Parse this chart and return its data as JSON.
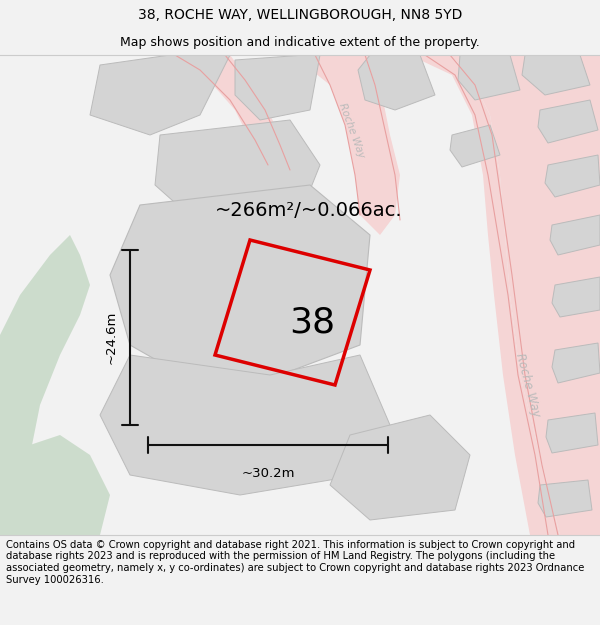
{
  "title_line1": "38, ROCHE WAY, WELLINGBOROUGH, NN8 5YD",
  "title_line2": "Map shows position and indicative extent of the property.",
  "footer_text": "Contains OS data © Crown copyright and database right 2021. This information is subject to Crown copyright and database rights 2023 and is reproduced with the permission of HM Land Registry. The polygons (including the associated geometry, namely x, y co-ordinates) are subject to Crown copyright and database rights 2023 Ordnance Survey 100026316.",
  "area_label": "~266m²/~0.066ac.",
  "number_label": "38",
  "width_label": "~30.2m",
  "height_label": "~24.6m",
  "bg_color": "#f2f2f2",
  "map_bg": "#f8f8f8",
  "road_fill": "#f5d5d5",
  "road_line": "#e8a0a0",
  "building_fill": "#d4d4d4",
  "building_outline": "#bbbbbb",
  "green_fill": "#ccdccc",
  "plot_color": "#dd0000",
  "plot_lw": 2.5,
  "dim_color": "#111111",
  "road_label_color": "#bbbbbb",
  "title_fs": 10,
  "sub_fs": 9,
  "footer_fs": 7.2,
  "area_fs": 14,
  "number_fs": 26,
  "dim_fs": 9.5
}
